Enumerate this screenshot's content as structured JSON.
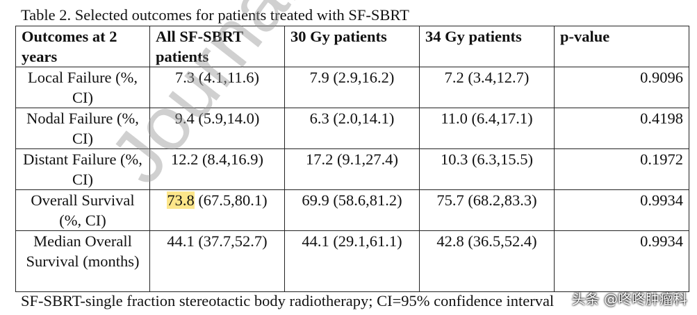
{
  "caption": "Table 2. Selected outcomes for patients treated with SF-SBRT",
  "table": {
    "headers": [
      "Outcomes at 2 years",
      "All SF-SBRT patients",
      "30 Gy patients",
      "34 Gy patients",
      "p-value"
    ],
    "rows": [
      {
        "label": "Local Failure (%, CI)",
        "all": "7.3 (4.1,11.6)",
        "gy30": "7.9 (2.9,16.2)",
        "gy34": "7.2 (3.4,12.7)",
        "p": "0.9096"
      },
      {
        "label": "Nodal Failure (%, CI)",
        "all": "9.4 (5.9,14.0)",
        "gy30": "6.3 (2.0,14.1)",
        "gy34": "11.0 (6.4,17.1)",
        "p": "0.4198"
      },
      {
        "label": "Distant Failure (%, CI)",
        "all": "12.2 (8.4,16.9)",
        "gy30": "17.2 (9.1,27.4)",
        "gy34": "10.3 (6.3,15.5)",
        "p": "0.1972"
      },
      {
        "label": "Overall Survival (%, CI)",
        "all_highlight": "73.8",
        "all_rest": " (67.5,80.1)",
        "gy30": "69.9 (58.6,81.2)",
        "gy34": "75.7 (68.2,83.3)",
        "p": "0.9934"
      },
      {
        "label": "Median Overall Survival (months)",
        "all": "44.1 (37.7,52.7)",
        "gy30": "44.1 (29.1,61.1)",
        "gy34": "42.8 (36.5,52.4)",
        "p": "0.9934"
      }
    ]
  },
  "footnote": "SF-SBRT-single fraction stereotactic body radiotherapy; CI=95% confidence interval",
  "watermark": "Journal Pre-proof",
  "site_tag": "头条 @咚咚肿瘤科",
  "colors": {
    "highlight": "#fde68a",
    "watermark": "#969696",
    "border": "#222222"
  }
}
